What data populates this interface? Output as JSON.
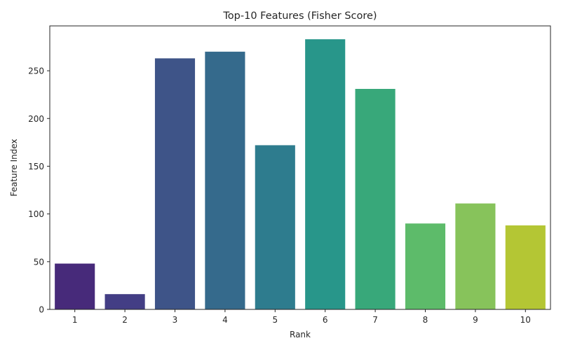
{
  "chart_data": {
    "type": "bar",
    "title": "Top-10 Features (Fisher Score)",
    "xlabel": "Rank",
    "ylabel": "Feature Index",
    "categories": [
      "1",
      "2",
      "3",
      "4",
      "5",
      "6",
      "7",
      "8",
      "9",
      "10"
    ],
    "values": [
      48,
      16,
      263,
      270,
      172,
      283,
      231,
      90,
      111,
      88
    ],
    "ylim": [
      0,
      297
    ],
    "yticks": [
      0,
      50,
      100,
      150,
      200,
      250
    ],
    "grid": false,
    "legend": "none",
    "colors": [
      "#472a7a",
      "#433e85",
      "#3e5488",
      "#356a8c",
      "#2e7c8e",
      "#28968a",
      "#38a87a",
      "#5dbb6a",
      "#87c35b",
      "#b4c634"
    ]
  }
}
